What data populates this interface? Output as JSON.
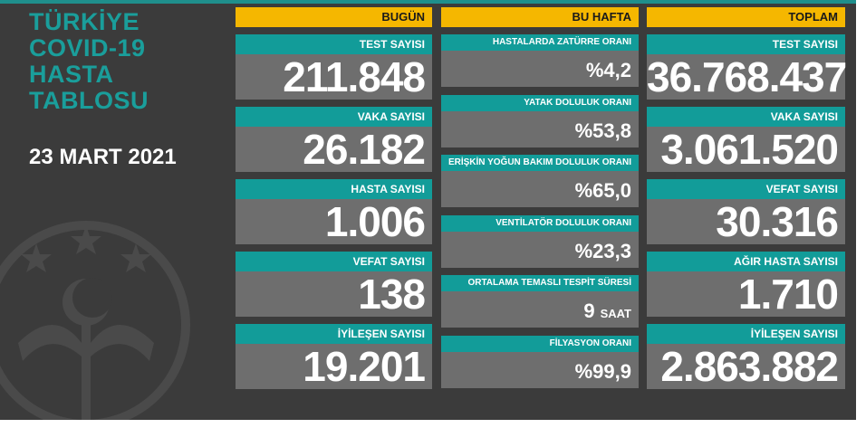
{
  "header": {
    "title_lines": [
      "TÜRKİYE",
      "COVID-19",
      "HASTA",
      "TABLOSU"
    ],
    "date": "23 MART 2021"
  },
  "columns": [
    {
      "heading": "BUGÜN",
      "cards": [
        {
          "label": "TEST SAYISI",
          "value": "211.848"
        },
        {
          "label": "VAKA SAYISI",
          "value": "26.182"
        },
        {
          "label": "HASTA SAYISI",
          "value": "1.006"
        },
        {
          "label": "VEFAT SAYISI",
          "value": "138"
        },
        {
          "label": "İYİLEŞEN SAYISI",
          "value": "19.201"
        }
      ]
    },
    {
      "heading": "BU HAFTA",
      "cards": [
        {
          "label": "HASTALARDA ZATÜRRE ORANI",
          "value": "%4,2"
        },
        {
          "label": "YATAK DOLULUK ORANI",
          "value": "%53,8"
        },
        {
          "label": "ERİŞKİN YOĞUN BAKIM DOLULUK ORANI",
          "value": "%65,0"
        },
        {
          "label": "VENTİLATÖR DOLULUK ORANI",
          "value": "%23,3"
        },
        {
          "label": "ORTALAMA TEMASLI TESPİT SÜRESİ",
          "value": "9",
          "unit": "SAAT"
        },
        {
          "label": "FİLYASYON ORANI",
          "value": "%99,9"
        }
      ]
    },
    {
      "heading": "TOPLAM",
      "cards": [
        {
          "label": "TEST SAYISI",
          "value": "36.768.437"
        },
        {
          "label": "VAKA SAYISI",
          "value": "3.061.520"
        },
        {
          "label": "VEFAT SAYISI",
          "value": "30.316"
        },
        {
          "label": "AĞIR HASTA SAYISI",
          "value": "1.710"
        },
        {
          "label": "İYİLEŞEN SAYISI",
          "value": "2.863.882"
        }
      ]
    }
  ]
}
